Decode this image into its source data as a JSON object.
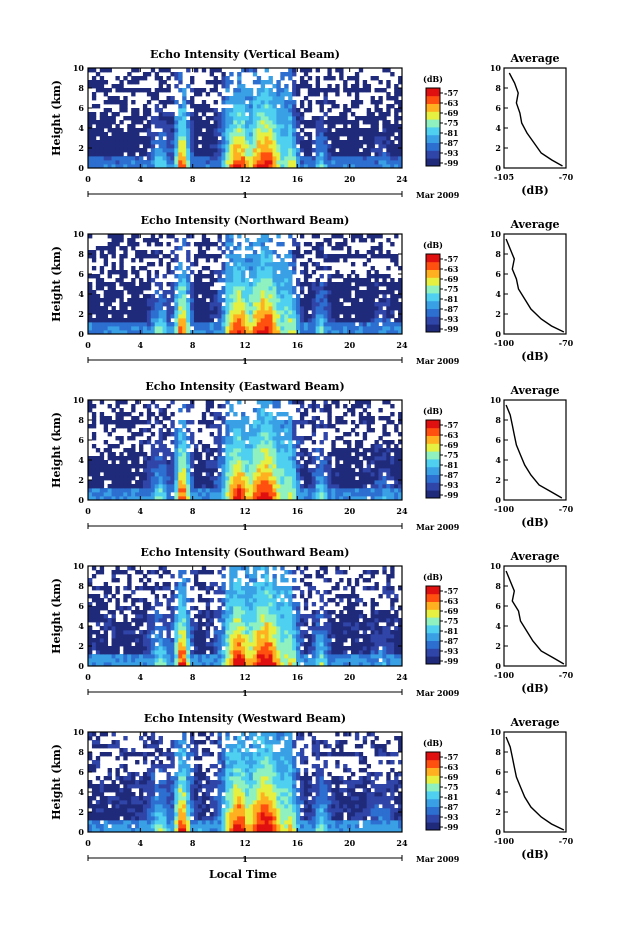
{
  "figure": {
    "xlabel": "Local Time",
    "date_label": "Mar 2009",
    "day_marker": "1",
    "colorbar_unit": "(dB)",
    "avg_title": "Average",
    "avg_xlabel": "(dB)"
  },
  "colors": {
    "palette": [
      "#1f2a7a",
      "#3045a8",
      "#2c6fd0",
      "#3aa0e6",
      "#4fd0f0",
      "#8ff0c0",
      "#e6f040",
      "#ffb020",
      "#ff5010",
      "#e01010"
    ]
  },
  "chart_data": [
    {
      "type": "heatmap",
      "title": "Echo Intensity (Vertical Beam)",
      "ylabel": "Height (km)",
      "xlim": [
        0,
        24
      ],
      "ylim": [
        0,
        10
      ],
      "xticks": [
        0,
        4,
        8,
        12,
        16,
        20,
        24
      ],
      "yticks": [
        0,
        2,
        4,
        6,
        8,
        10
      ],
      "colorbar_ticks": [
        "-57",
        "-63",
        "-69",
        "-75",
        "-81",
        "-87",
        "-93",
        "-99"
      ],
      "average": {
        "xlim": [
          -105,
          -70
        ],
        "xticks": [
          -105,
          -70
        ],
        "ylim": [
          0,
          10
        ],
        "yticks": [
          0,
          2,
          4,
          6,
          8,
          10
        ],
        "points": [
          [
            0.2,
            -72
          ],
          [
            0.8,
            -78
          ],
          [
            1.5,
            -84
          ],
          [
            2.5,
            -88
          ],
          [
            3.5,
            -92
          ],
          [
            4.5,
            -95
          ],
          [
            5.5,
            -96
          ],
          [
            6.5,
            -98
          ],
          [
            7.5,
            -97
          ],
          [
            8.5,
            -99
          ],
          [
            9.5,
            -102
          ]
        ]
      }
    },
    {
      "type": "heatmap",
      "title": "Echo Intensity (Northward Beam)",
      "ylabel": "Height (km)",
      "xlim": [
        0,
        24
      ],
      "ylim": [
        0,
        10
      ],
      "xticks": [
        0,
        4,
        8,
        12,
        16,
        20,
        24
      ],
      "yticks": [
        0,
        2,
        4,
        6,
        8,
        10
      ],
      "colorbar_ticks": [
        "-57",
        "-63",
        "-69",
        "-75",
        "-81",
        "-87",
        "-93",
        "-99"
      ],
      "average": {
        "xlim": [
          -100,
          -70
        ],
        "xticks": [
          -100,
          -70
        ],
        "ylim": [
          0,
          10
        ],
        "yticks": [
          0,
          2,
          4,
          6,
          8,
          10
        ],
        "points": [
          [
            0.2,
            -71
          ],
          [
            0.8,
            -77
          ],
          [
            1.5,
            -82
          ],
          [
            2.5,
            -87
          ],
          [
            3.5,
            -90
          ],
          [
            4.5,
            -93
          ],
          [
            5.5,
            -94
          ],
          [
            6.5,
            -96
          ],
          [
            7.5,
            -95
          ],
          [
            8.5,
            -97
          ],
          [
            9.5,
            -99
          ]
        ]
      }
    },
    {
      "type": "heatmap",
      "title": "Echo Intensity (Eastward Beam)",
      "ylabel": "Height (km)",
      "xlim": [
        0,
        24
      ],
      "ylim": [
        0,
        10
      ],
      "xticks": [
        0,
        4,
        8,
        12,
        16,
        20,
        24
      ],
      "yticks": [
        0,
        2,
        4,
        6,
        8,
        10
      ],
      "colorbar_ticks": [
        "-57",
        "-63",
        "-69",
        "-75",
        "-81",
        "-87",
        "-93",
        "-99"
      ],
      "average": {
        "xlim": [
          -100,
          -70
        ],
        "xticks": [
          -100,
          -70
        ],
        "ylim": [
          0,
          10
        ],
        "yticks": [
          0,
          2,
          4,
          6,
          8,
          10
        ],
        "points": [
          [
            0.2,
            -72
          ],
          [
            0.8,
            -77
          ],
          [
            1.5,
            -83
          ],
          [
            2.5,
            -87
          ],
          [
            3.5,
            -90
          ],
          [
            4.5,
            -92
          ],
          [
            5.5,
            -94
          ],
          [
            6.5,
            -95
          ],
          [
            7.5,
            -96
          ],
          [
            8.5,
            -97
          ],
          [
            9.5,
            -99
          ]
        ]
      }
    },
    {
      "type": "heatmap",
      "title": "Echo Intensity (Southward Beam)",
      "ylabel": "Height (km)",
      "xlim": [
        0,
        24
      ],
      "ylim": [
        0,
        10
      ],
      "xticks": [
        0,
        4,
        8,
        12,
        16,
        20,
        24
      ],
      "yticks": [
        0,
        2,
        4,
        6,
        8,
        10
      ],
      "colorbar_ticks": [
        "-57",
        "-63",
        "-69",
        "-75",
        "-81",
        "-87",
        "-93",
        "-99"
      ],
      "average": {
        "xlim": [
          -100,
          -70
        ],
        "xticks": [
          -100,
          -70
        ],
        "ylim": [
          0,
          10
        ],
        "yticks": [
          0,
          2,
          4,
          6,
          8,
          10
        ],
        "points": [
          [
            0.2,
            -71
          ],
          [
            0.8,
            -76
          ],
          [
            1.5,
            -82
          ],
          [
            2.5,
            -86
          ],
          [
            3.5,
            -89
          ],
          [
            4.5,
            -92
          ],
          [
            5.5,
            -93
          ],
          [
            6.5,
            -96
          ],
          [
            7.5,
            -95
          ],
          [
            8.5,
            -97
          ],
          [
            9.5,
            -99
          ]
        ]
      }
    },
    {
      "type": "heatmap",
      "title": "Echo Intensity (Westward Beam)",
      "ylabel": "Height (km)",
      "xlim": [
        0,
        24
      ],
      "ylim": [
        0,
        10
      ],
      "xticks": [
        0,
        4,
        8,
        12,
        16,
        20,
        24
      ],
      "yticks": [
        0,
        2,
        4,
        6,
        8,
        10
      ],
      "colorbar_ticks": [
        "-57",
        "-63",
        "-69",
        "-75",
        "-81",
        "-87",
        "-93",
        "-99"
      ],
      "average": {
        "xlim": [
          -100,
          -70
        ],
        "xticks": [
          -100,
          -70
        ],
        "ylim": [
          0,
          10
        ],
        "yticks": [
          0,
          2,
          4,
          6,
          8,
          10
        ],
        "points": [
          [
            0.2,
            -71
          ],
          [
            0.8,
            -77
          ],
          [
            1.5,
            -82
          ],
          [
            2.5,
            -87
          ],
          [
            3.5,
            -90
          ],
          [
            4.5,
            -92
          ],
          [
            5.5,
            -94
          ],
          [
            6.5,
            -95
          ],
          [
            7.5,
            -96
          ],
          [
            8.5,
            -97
          ],
          [
            9.5,
            -99
          ]
        ]
      }
    }
  ]
}
